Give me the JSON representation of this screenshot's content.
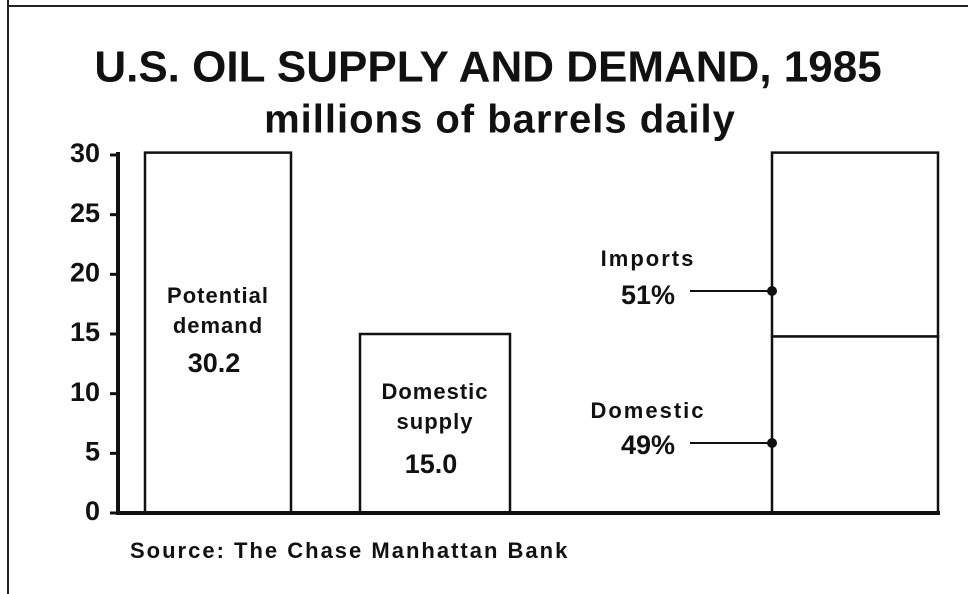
{
  "chart_data": {
    "type": "bar",
    "title": "U.S. OIL SUPPLY AND DEMAND, 1985",
    "subtitle": "millions of barrels daily",
    "source": "Source: The Chase Manhattan Bank",
    "categories": [
      "Potential demand",
      "Domestic supply",
      null
    ],
    "values": [
      30.2,
      15.0,
      null
    ],
    "value_labels": [
      "30.2",
      "15.0",
      null
    ],
    "series": [
      {
        "name": "Domestic",
        "share": "49%",
        "values": [
          null,
          null,
          14.8
        ]
      },
      {
        "name": "Imports",
        "share": "51%",
        "values": [
          null,
          null,
          15.4
        ]
      }
    ],
    "color": "#ffffff",
    "ylim": [
      0,
      30
    ],
    "yticks": [
      0,
      5,
      10,
      15,
      20,
      25,
      30
    ]
  }
}
